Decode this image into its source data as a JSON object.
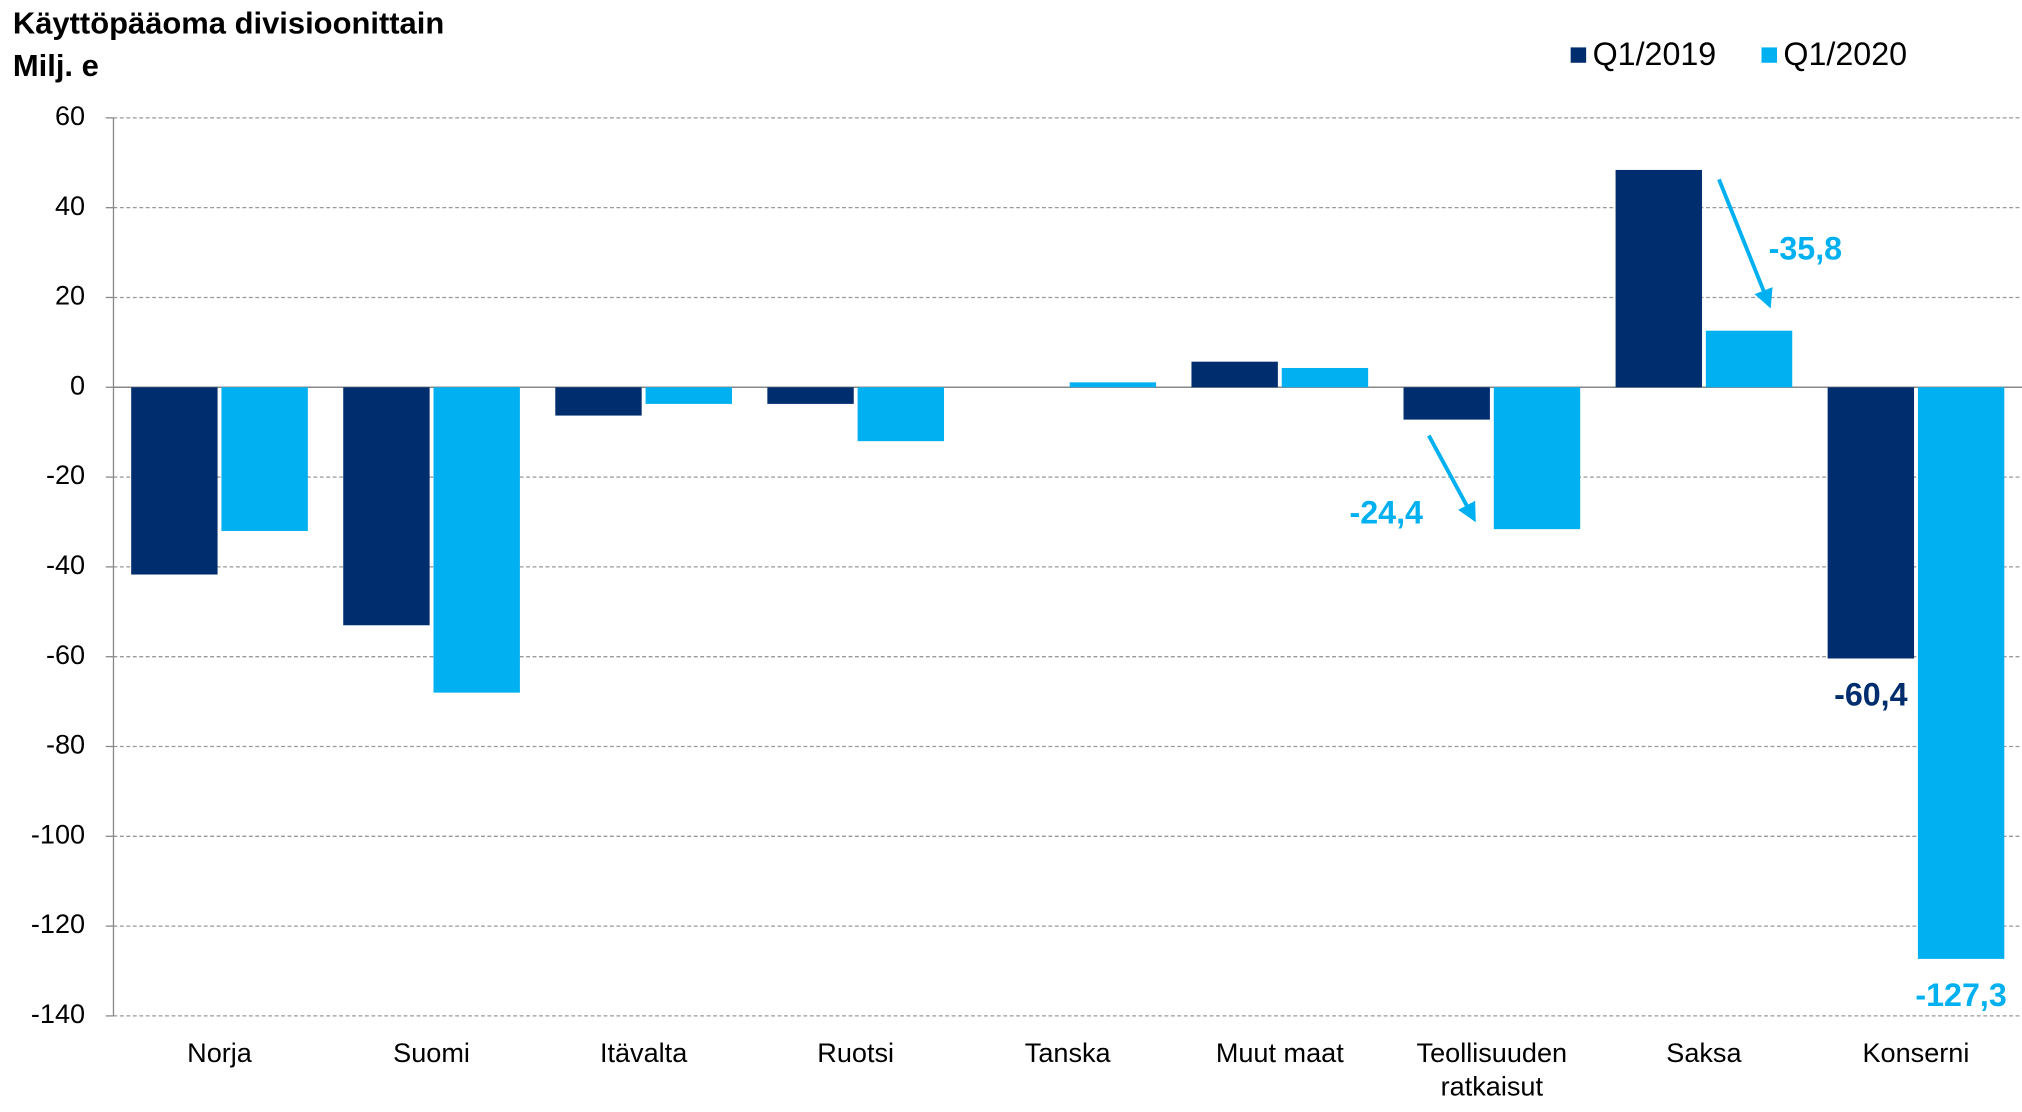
{
  "chart_data": {
    "type": "bar",
    "title": "Käyttöpääoma divisioonittain",
    "subtitle": "Milj. e",
    "categories": [
      "Norja",
      "Suomi",
      "Itävalta",
      "Ruotsi",
      "Tanska",
      "Muut maat",
      "Teollisuuden ratkaisut",
      "Saksa",
      "Konserni"
    ],
    "series": [
      {
        "name": "Q1/2019",
        "color": "#002d6e",
        "values": [
          -41.7,
          -53,
          -6.3,
          -3.7,
          0,
          5.7,
          -7.2,
          48.4,
          -60.4
        ],
        "value_labels": [
          null,
          null,
          null,
          null,
          null,
          null,
          null,
          null,
          "-60,4"
        ]
      },
      {
        "name": "Q1/2020",
        "color": "#00b0f0",
        "values": [
          -32,
          -68,
          -3.7,
          -12,
          1.1,
          4.3,
          -31.6,
          12.6,
          -127.3
        ],
        "value_labels": [
          null,
          null,
          null,
          null,
          null,
          null,
          null,
          null,
          "-127,3"
        ]
      }
    ],
    "annotations": [
      {
        "text": "-35,8",
        "color": "#00b0f0"
      },
      {
        "text": "-24,4",
        "color": "#00b0f0"
      }
    ],
    "ylim": [
      -140,
      60
    ],
    "yticks": [
      -140,
      -120,
      -100,
      -80,
      -60,
      -40,
      -20,
      0,
      20,
      40,
      60
    ],
    "grid": true,
    "legend": "top-right"
  }
}
